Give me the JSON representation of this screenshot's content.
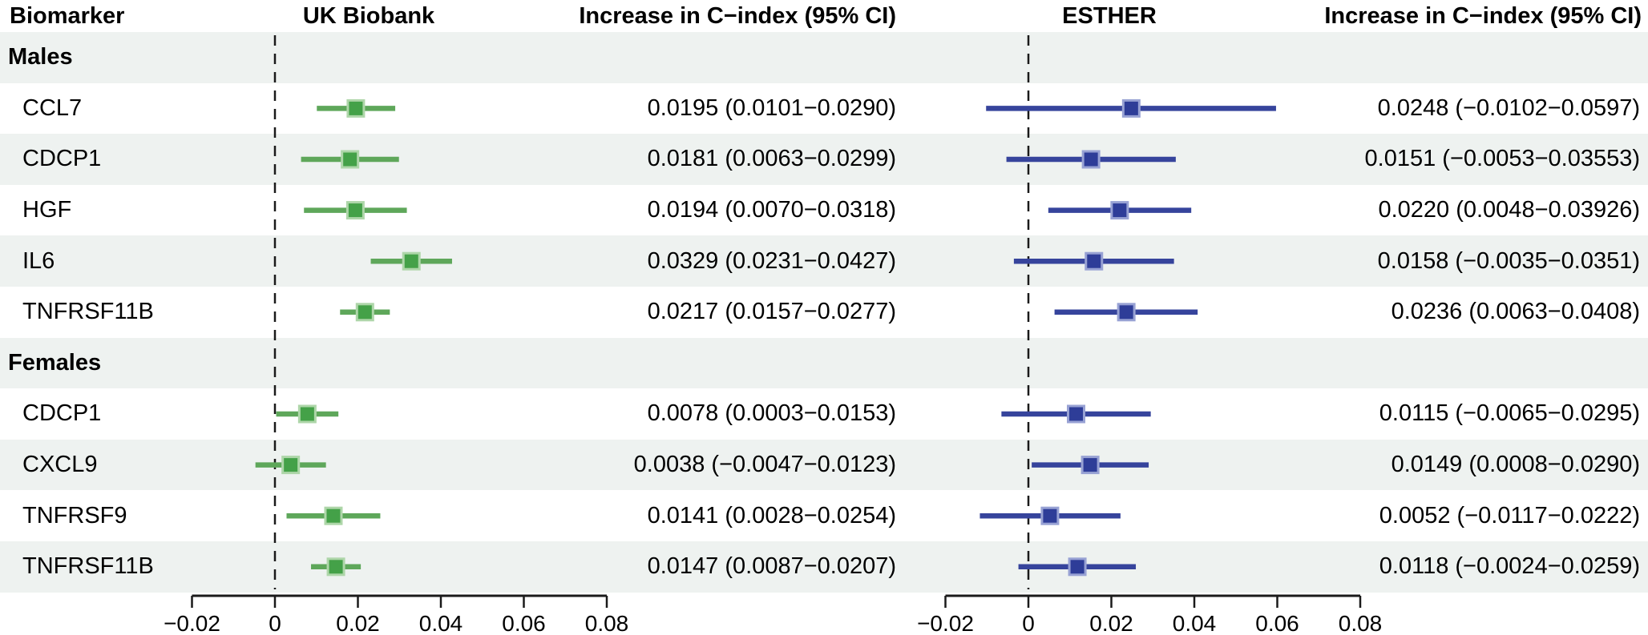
{
  "headers": {
    "biomarker": "Biomarker",
    "uk_biobank": "UK Biobank",
    "uk_ci": "Increase in C−index (95% CI)",
    "esther": "ESTHER",
    "esther_ci": "Increase in C−index (95% CI)"
  },
  "colors": {
    "uk_line": "#5ea75a",
    "uk_square": "#44a148",
    "uk_square_border": "#aed6a9",
    "esther_line": "#36449c",
    "esther_square": "#2e3d98",
    "esther_square_border": "#98a2d4",
    "stripe": "#eef2f0",
    "axis": "#1a1a1a",
    "text": "#000000"
  },
  "chart_data": {
    "type": "forest",
    "panels": [
      {
        "name": "UK Biobank",
        "xlim": [
          -0.02,
          0.08
        ],
        "ticks": [
          -0.02,
          0,
          0.02,
          0.04,
          0.06,
          0.08
        ],
        "tick_labels": [
          "−0.02",
          "0",
          "0.02",
          "0.04",
          "0.06",
          "0.08"
        ],
        "ref_line": 0
      },
      {
        "name": "ESTHER",
        "xlim": [
          -0.02,
          0.08
        ],
        "ticks": [
          -0.02,
          0,
          0.02,
          0.04,
          0.06,
          0.08
        ],
        "tick_labels": [
          "−0.02",
          "0",
          "0.02",
          "0.04",
          "0.06",
          "0.08"
        ],
        "ref_line": 0
      }
    ],
    "groups": [
      {
        "label": "Males",
        "rows": [
          {
            "biomarker": "CCL7",
            "uk": {
              "estimate": 0.0195,
              "lower": 0.0101,
              "upper": 0.029,
              "label": "0.0195 (0.0101−0.0290)"
            },
            "esther": {
              "estimate": 0.0248,
              "lower": -0.0102,
              "upper": 0.0597,
              "label": "0.0248 (−0.0102−0.0597)"
            }
          },
          {
            "biomarker": "CDCP1",
            "uk": {
              "estimate": 0.0181,
              "lower": 0.0063,
              "upper": 0.0299,
              "label": "0.0181 (0.0063−0.0299)"
            },
            "esther": {
              "estimate": 0.0151,
              "lower": -0.0053,
              "upper": 0.03553,
              "label": "0.0151 (−0.0053−0.03553)"
            }
          },
          {
            "biomarker": "HGF",
            "uk": {
              "estimate": 0.0194,
              "lower": 0.007,
              "upper": 0.0318,
              "label": "0.0194 (0.0070−0.0318)"
            },
            "esther": {
              "estimate": 0.022,
              "lower": 0.0048,
              "upper": 0.03926,
              "label": "0.0220 (0.0048−0.03926)"
            }
          },
          {
            "biomarker": "IL6",
            "uk": {
              "estimate": 0.0329,
              "lower": 0.0231,
              "upper": 0.0427,
              "label": "0.0329 (0.0231−0.0427)"
            },
            "esther": {
              "estimate": 0.0158,
              "lower": -0.0035,
              "upper": 0.0351,
              "label": "0.0158 (−0.0035−0.0351)"
            }
          },
          {
            "biomarker": "TNFRSF11B",
            "uk": {
              "estimate": 0.0217,
              "lower": 0.0157,
              "upper": 0.0277,
              "label": "0.0217 (0.0157−0.0277)"
            },
            "esther": {
              "estimate": 0.0236,
              "lower": 0.0063,
              "upper": 0.0408,
              "label": "0.0236 (0.0063−0.0408)"
            }
          }
        ]
      },
      {
        "label": "Females",
        "rows": [
          {
            "biomarker": "CDCP1",
            "uk": {
              "estimate": 0.0078,
              "lower": 0.0003,
              "upper": 0.0153,
              "label": "0.0078 (0.0003−0.0153)"
            },
            "esther": {
              "estimate": 0.0115,
              "lower": -0.0065,
              "upper": 0.0295,
              "label": "0.0115 (−0.0065−0.0295)"
            }
          },
          {
            "biomarker": "CXCL9",
            "uk": {
              "estimate": 0.0038,
              "lower": -0.0047,
              "upper": 0.0123,
              "label": "0.0038 (−0.0047−0.0123)"
            },
            "esther": {
              "estimate": 0.0149,
              "lower": 0.0008,
              "upper": 0.029,
              "label": "0.0149 (0.0008−0.0290)"
            }
          },
          {
            "biomarker": "TNFRSF9",
            "uk": {
              "estimate": 0.0141,
              "lower": 0.0028,
              "upper": 0.0254,
              "label": "0.0141 (0.0028−0.0254)"
            },
            "esther": {
              "estimate": 0.0052,
              "lower": -0.0117,
              "upper": 0.0222,
              "label": "0.0052 (−0.0117−0.0222)"
            }
          },
          {
            "biomarker": "TNFRSF11B",
            "uk": {
              "estimate": 0.0147,
              "lower": 0.0087,
              "upper": 0.0207,
              "label": "0.0147 (0.0087−0.0207)"
            },
            "esther": {
              "estimate": 0.0118,
              "lower": -0.0024,
              "upper": 0.0259,
              "label": "0.0118 (−0.0024−0.0259)"
            }
          }
        ]
      }
    ]
  }
}
